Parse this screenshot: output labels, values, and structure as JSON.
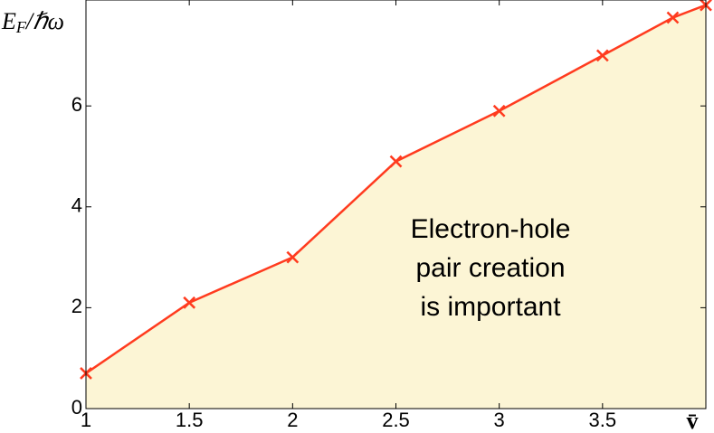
{
  "chart_data": {
    "type": "area-line",
    "x": [
      1,
      1.5,
      2,
      2.5,
      3,
      3.5,
      3.84,
      4
    ],
    "values": [
      0.7,
      2.1,
      3.0,
      4.9,
      5.9,
      7.0,
      7.75,
      8.0
    ],
    "color": "#ff3b1f",
    "fill": "#fcf5d5",
    "xlim": [
      1,
      4
    ],
    "ylim": [
      0,
      8.1
    ],
    "xticks": [
      1,
      1.5,
      2,
      2.5,
      3,
      3.5
    ],
    "yticks": [
      0,
      2,
      4,
      6
    ],
    "ylabel_parts": [
      "E",
      "F",
      "/ℏω"
    ],
    "xlabel": "v̄",
    "annotation": [
      "Electron-hole",
      "pair creation",
      "is important"
    ]
  }
}
